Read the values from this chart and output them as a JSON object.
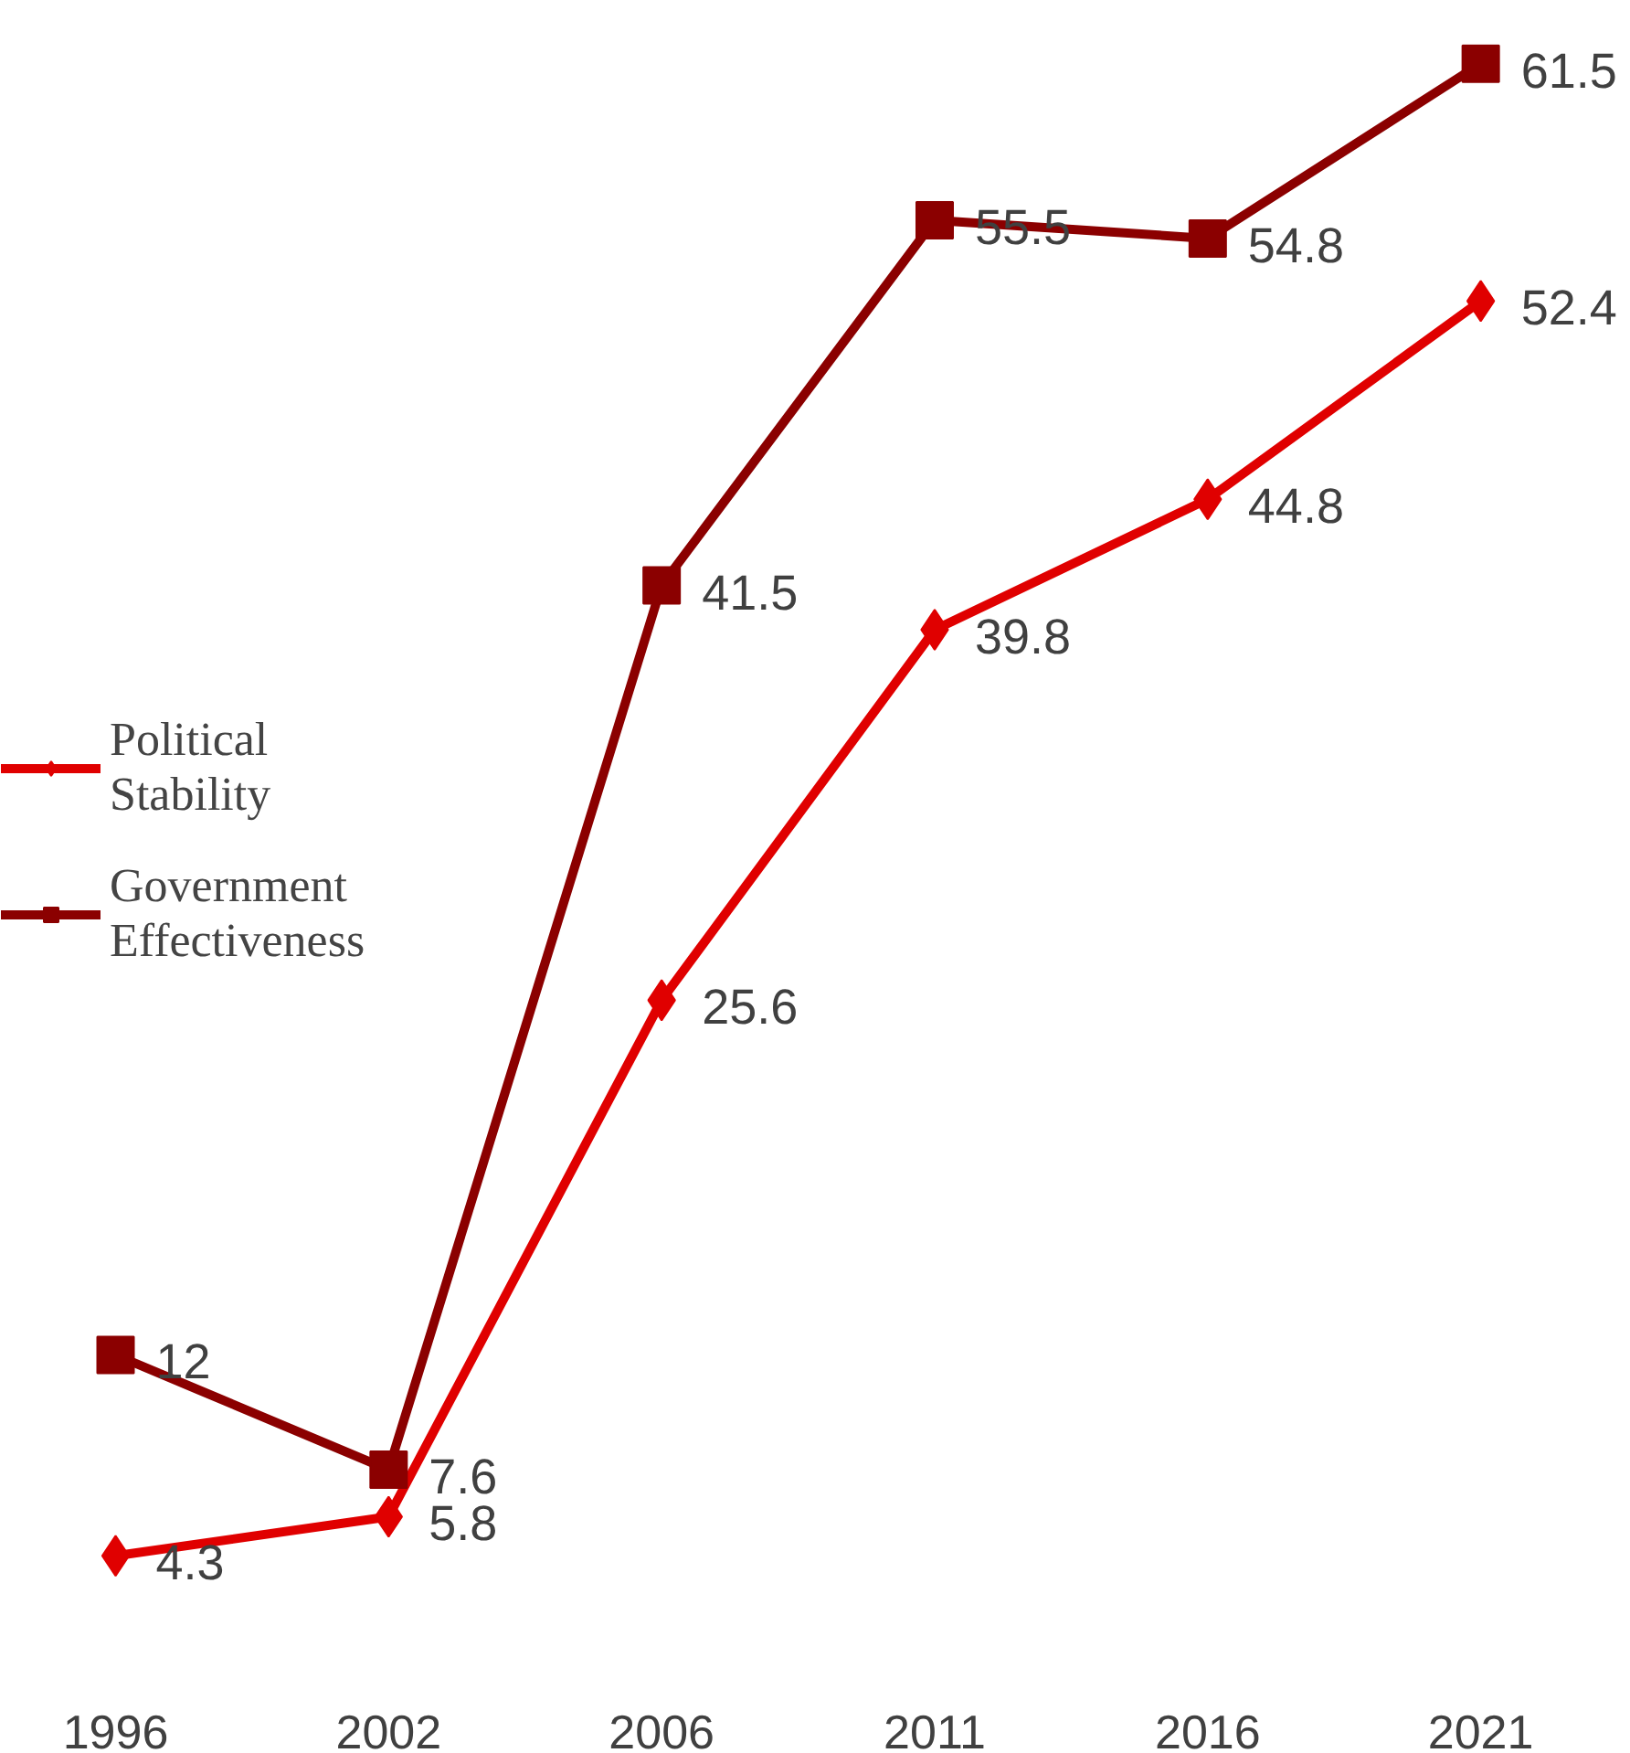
{
  "chart_data": {
    "type": "line",
    "categories": [
      "1996",
      "2002",
      "2006",
      "2011",
      "2016",
      "2021"
    ],
    "series": [
      {
        "name": "Political Stability",
        "color": "#e00000",
        "marker": "diamond",
        "values": [
          4.3,
          5.8,
          25.6,
          39.8,
          44.8,
          52.4
        ]
      },
      {
        "name": "Government Effectiveness",
        "color": "#8b0000",
        "marker": "square",
        "values": [
          12,
          7.6,
          41.5,
          55.5,
          54.8,
          61.5
        ]
      }
    ],
    "data_labels": true,
    "legend": "left",
    "grid": false,
    "tick_labels": "x",
    "line_style": "solid"
  }
}
